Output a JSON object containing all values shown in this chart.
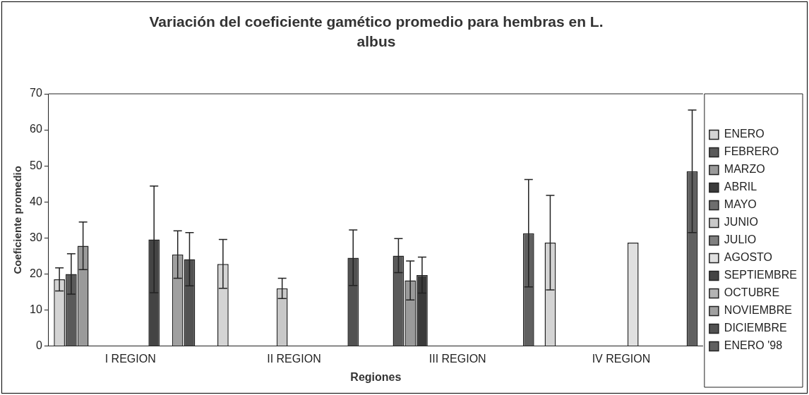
{
  "chart_data": {
    "type": "bar",
    "title": "Variación del coeficiente gamético promedio para hembras en L. albus",
    "xlabel": "Regiones",
    "ylabel": "Coeficiente promedio",
    "categories": [
      "I REGION",
      "II REGION",
      "III REGION",
      "IV REGION"
    ],
    "ylim": [
      0,
      70
    ],
    "yticks": [
      0,
      10,
      20,
      30,
      40,
      50,
      60,
      70
    ],
    "grid": false,
    "legend": "right",
    "series": [
      {
        "name": "ENERO",
        "color": "#d4d4d4",
        "values": [
          18.5,
          22.8,
          null,
          28.7
        ],
        "errors": [
          3.2,
          6.8,
          null,
          13.1
        ]
      },
      {
        "name": "FEBRERO",
        "color": "#5a5a5a",
        "values": [
          20,
          null,
          25.1,
          null
        ],
        "errors": [
          5.6,
          null,
          4.7,
          null
        ]
      },
      {
        "name": "MARZO",
        "color": "#9a9a9a",
        "values": [
          27.8,
          null,
          18.2,
          null
        ],
        "errors": [
          6.6,
          null,
          5.4,
          null
        ]
      },
      {
        "name": "ABRIL",
        "color": "#3a3a3a",
        "values": [
          null,
          null,
          19.7,
          null
        ],
        "errors": [
          null,
          null,
          5,
          null
        ]
      },
      {
        "name": "MAYO",
        "color": "#6e6e6e",
        "values": [
          null,
          null,
          null,
          null
        ]
      },
      {
        "name": "JUNIO",
        "color": "#c8c8c8",
        "values": [
          null,
          16,
          null,
          null
        ],
        "errors": [
          null,
          2.8,
          null,
          null
        ]
      },
      {
        "name": "JULIO",
        "color": "#808080",
        "values": [
          null,
          null,
          null,
          null
        ]
      },
      {
        "name": "AGOSTO",
        "color": "#e0e0e0",
        "values": [
          null,
          null,
          null,
          28.7
        ]
      },
      {
        "name": "SEPTIEMBRE",
        "color": "#444444",
        "values": [
          29.6,
          null,
          null,
          null
        ],
        "errors": [
          14.8,
          null,
          null,
          null
        ]
      },
      {
        "name": "OCTUBRE",
        "color": "#b4b4b4",
        "values": [
          null,
          null,
          null,
          null
        ]
      },
      {
        "name": "NOVIEMBRE",
        "color": "#a0a0a0",
        "values": [
          25.4,
          null,
          null,
          null
        ],
        "errors": [
          6.6,
          null,
          null,
          null
        ]
      },
      {
        "name": "DICIEMBRE",
        "color": "#525252",
        "values": [
          24.1,
          24.5,
          null,
          null
        ],
        "errors": [
          7.4,
          7.7,
          null,
          null
        ]
      },
      {
        "name": "ENERO '98",
        "color": "#606060",
        "values": [
          null,
          null,
          31.3,
          48.5
        ],
        "errors": [
          null,
          null,
          14.9,
          17
        ]
      }
    ]
  }
}
